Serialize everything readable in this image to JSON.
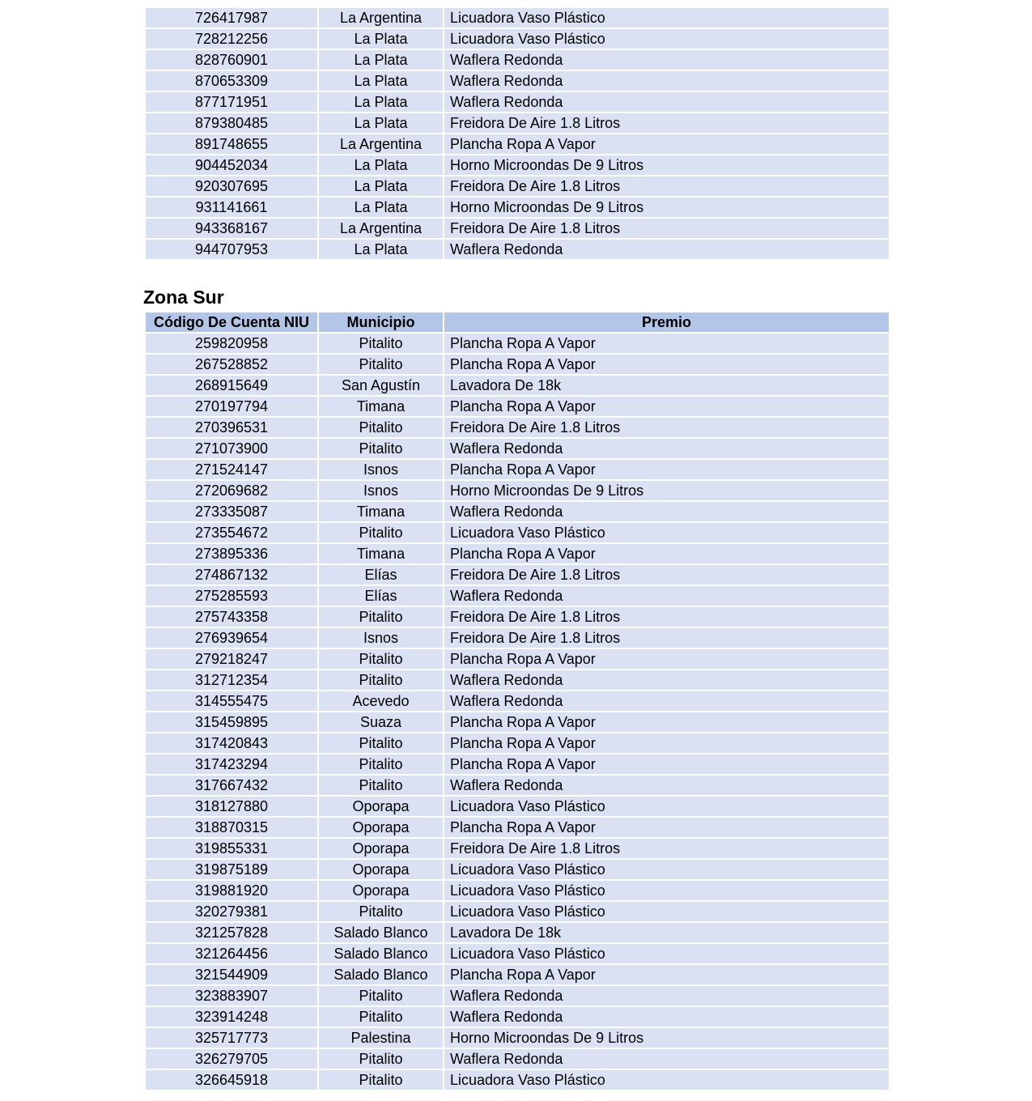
{
  "table_top": {
    "rows": [
      [
        "726417987",
        "La Argentina",
        "Licuadora Vaso Plástico"
      ],
      [
        "728212256",
        "La Plata",
        "Licuadora Vaso Plástico"
      ],
      [
        "828760901",
        "La Plata",
        "Waflera Redonda"
      ],
      [
        "870653309",
        "La Plata",
        "Waflera Redonda"
      ],
      [
        "877171951",
        "La Plata",
        "Waflera Redonda"
      ],
      [
        "879380485",
        "La Plata",
        "Freidora De Aire 1.8 Litros"
      ],
      [
        "891748655",
        "La Argentina",
        "Plancha Ropa A Vapor"
      ],
      [
        "904452034",
        "La Plata",
        "Horno Microondas De 9 Litros"
      ],
      [
        "920307695",
        "La Plata",
        "Freidora De Aire 1.8 Litros"
      ],
      [
        "931141661",
        "La Plata",
        "Horno Microondas De 9 Litros"
      ],
      [
        "943368167",
        "La Argentina",
        "Freidora De Aire 1.8 Litros"
      ],
      [
        "944707953",
        "La Plata",
        "Waflera Redonda"
      ]
    ]
  },
  "zona_sur": {
    "heading": "Zona Sur",
    "headers": [
      "Código De Cuenta NIU",
      "Municipio",
      "Premio"
    ],
    "rows": [
      [
        "259820958",
        "Pitalito",
        "Plancha Ropa A Vapor"
      ],
      [
        "267528852",
        "Pitalito",
        "Plancha Ropa A Vapor"
      ],
      [
        "268915649",
        "San Agustín",
        "Lavadora De 18k"
      ],
      [
        "270197794",
        "Timana",
        "Plancha Ropa A Vapor"
      ],
      [
        "270396531",
        "Pitalito",
        "Freidora De Aire 1.8 Litros"
      ],
      [
        "271073900",
        "Pitalito",
        "Waflera Redonda"
      ],
      [
        "271524147",
        "Isnos",
        "Plancha Ropa A Vapor"
      ],
      [
        "272069682",
        "Isnos",
        "Horno Microondas De 9 Litros"
      ],
      [
        "273335087",
        "Timana",
        "Waflera Redonda"
      ],
      [
        "273554672",
        "Pitalito",
        "Licuadora Vaso Plástico"
      ],
      [
        "273895336",
        "Timana",
        "Plancha Ropa A Vapor"
      ],
      [
        "274867132",
        "Elías",
        "Freidora De Aire 1.8 Litros"
      ],
      [
        "275285593",
        "Elías",
        "Waflera Redonda"
      ],
      [
        "275743358",
        "Pitalito",
        "Freidora De Aire 1.8 Litros"
      ],
      [
        "276939654",
        "Isnos",
        "Freidora De Aire 1.8 Litros"
      ],
      [
        "279218247",
        "Pitalito",
        "Plancha Ropa A Vapor"
      ],
      [
        "312712354",
        "Pitalito",
        "Waflera Redonda"
      ],
      [
        "314555475",
        "Acevedo",
        "Waflera Redonda"
      ],
      [
        "315459895",
        "Suaza",
        "Plancha Ropa A Vapor"
      ],
      [
        "317420843",
        "Pitalito",
        "Plancha Ropa A Vapor"
      ],
      [
        "317423294",
        "Pitalito",
        "Plancha Ropa A Vapor"
      ],
      [
        "317667432",
        "Pitalito",
        "Waflera Redonda"
      ],
      [
        "318127880",
        "Oporapa",
        "Licuadora Vaso Plástico"
      ],
      [
        "318870315",
        "Oporapa",
        "Plancha Ropa A Vapor"
      ],
      [
        "319855331",
        "Oporapa",
        "Freidora De Aire 1.8 Litros"
      ],
      [
        "319875189",
        "Oporapa",
        "Licuadora Vaso Plástico"
      ],
      [
        "319881920",
        "Oporapa",
        "Licuadora Vaso Plástico"
      ],
      [
        "320279381",
        "Pitalito",
        "Licuadora Vaso Plástico"
      ],
      [
        "321257828",
        "Salado Blanco",
        "Lavadora De 18k"
      ],
      [
        "321264456",
        "Salado Blanco",
        "Licuadora Vaso Plástico"
      ],
      [
        "321544909",
        "Salado Blanco",
        "Plancha Ropa A Vapor"
      ],
      [
        "323883907",
        "Pitalito",
        "Waflera Redonda"
      ],
      [
        "323914248",
        "Pitalito",
        "Waflera Redonda"
      ],
      [
        "325717773",
        "Palestina",
        "Horno Microondas De 9 Litros"
      ],
      [
        "326279705",
        "Pitalito",
        "Waflera Redonda"
      ],
      [
        "326645918",
        "Pitalito",
        "Licuadora Vaso Plástico"
      ]
    ]
  },
  "colors": {
    "row_fill": "#d9e1f2",
    "header_fill": "#b4c6e7"
  }
}
